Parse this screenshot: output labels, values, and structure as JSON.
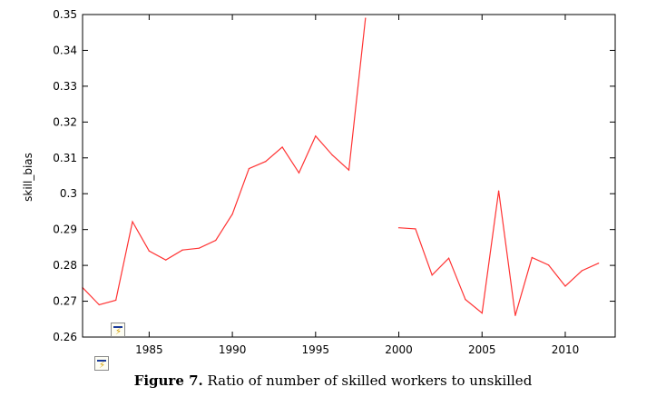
{
  "chart_data": {
    "type": "line",
    "title": "",
    "xlabel": "",
    "ylabel": "skill_bias",
    "xlim": [
      1981,
      2013
    ],
    "ylim": [
      0.26,
      0.35
    ],
    "x_ticks": [
      1985,
      1990,
      1995,
      2000,
      2005,
      2010
    ],
    "x_tick_labels": [
      "1985",
      "1990",
      "1995",
      "2000",
      "2005",
      "2010"
    ],
    "y_ticks": [
      0.26,
      0.27,
      0.28,
      0.29,
      0.3,
      0.31,
      0.32,
      0.33,
      0.34,
      0.35
    ],
    "y_tick_labels": [
      "0.26",
      "0.27",
      "0.28",
      "0.29",
      "0.3",
      "0.31",
      "0.32",
      "0.33",
      "0.34",
      "0.35"
    ],
    "grid": false,
    "line_color": "#ff3333",
    "series": [
      {
        "points": [
          [
            1981,
            0.2738
          ],
          [
            1982,
            0.269
          ],
          [
            1983,
            0.2703
          ],
          [
            1984,
            0.2922
          ],
          [
            1985,
            0.284
          ],
          [
            1986,
            0.2815
          ],
          [
            1987,
            0.2843
          ],
          [
            1988,
            0.2848
          ],
          [
            1989,
            0.287
          ],
          [
            1990,
            0.2943
          ],
          [
            1991,
            0.307
          ],
          [
            1992,
            0.309
          ],
          [
            1993,
            0.313
          ],
          [
            1994,
            0.3058
          ],
          [
            1995,
            0.3161
          ],
          [
            1996,
            0.3108
          ],
          [
            1997,
            0.3066
          ],
          [
            1998,
            0.349
          ]
        ]
      },
      {
        "points": [
          [
            2000,
            0.2905
          ],
          [
            2001,
            0.2902
          ],
          [
            2002,
            0.2773
          ],
          [
            2003,
            0.282
          ],
          [
            2004,
            0.2705
          ],
          [
            2005,
            0.2667
          ],
          [
            2006,
            0.3008
          ],
          [
            2007,
            0.266
          ],
          [
            2008,
            0.2822
          ],
          [
            2009,
            0.2801
          ],
          [
            2010,
            0.2742
          ],
          [
            2011,
            0.2785
          ],
          [
            2012,
            0.2806
          ]
        ]
      }
    ]
  },
  "caption": {
    "label": "Figure 7.",
    "text": "Ratio of number of skilled workers to unskilled"
  },
  "icons": [
    "equation-editor-icon",
    "equation-editor-icon"
  ]
}
